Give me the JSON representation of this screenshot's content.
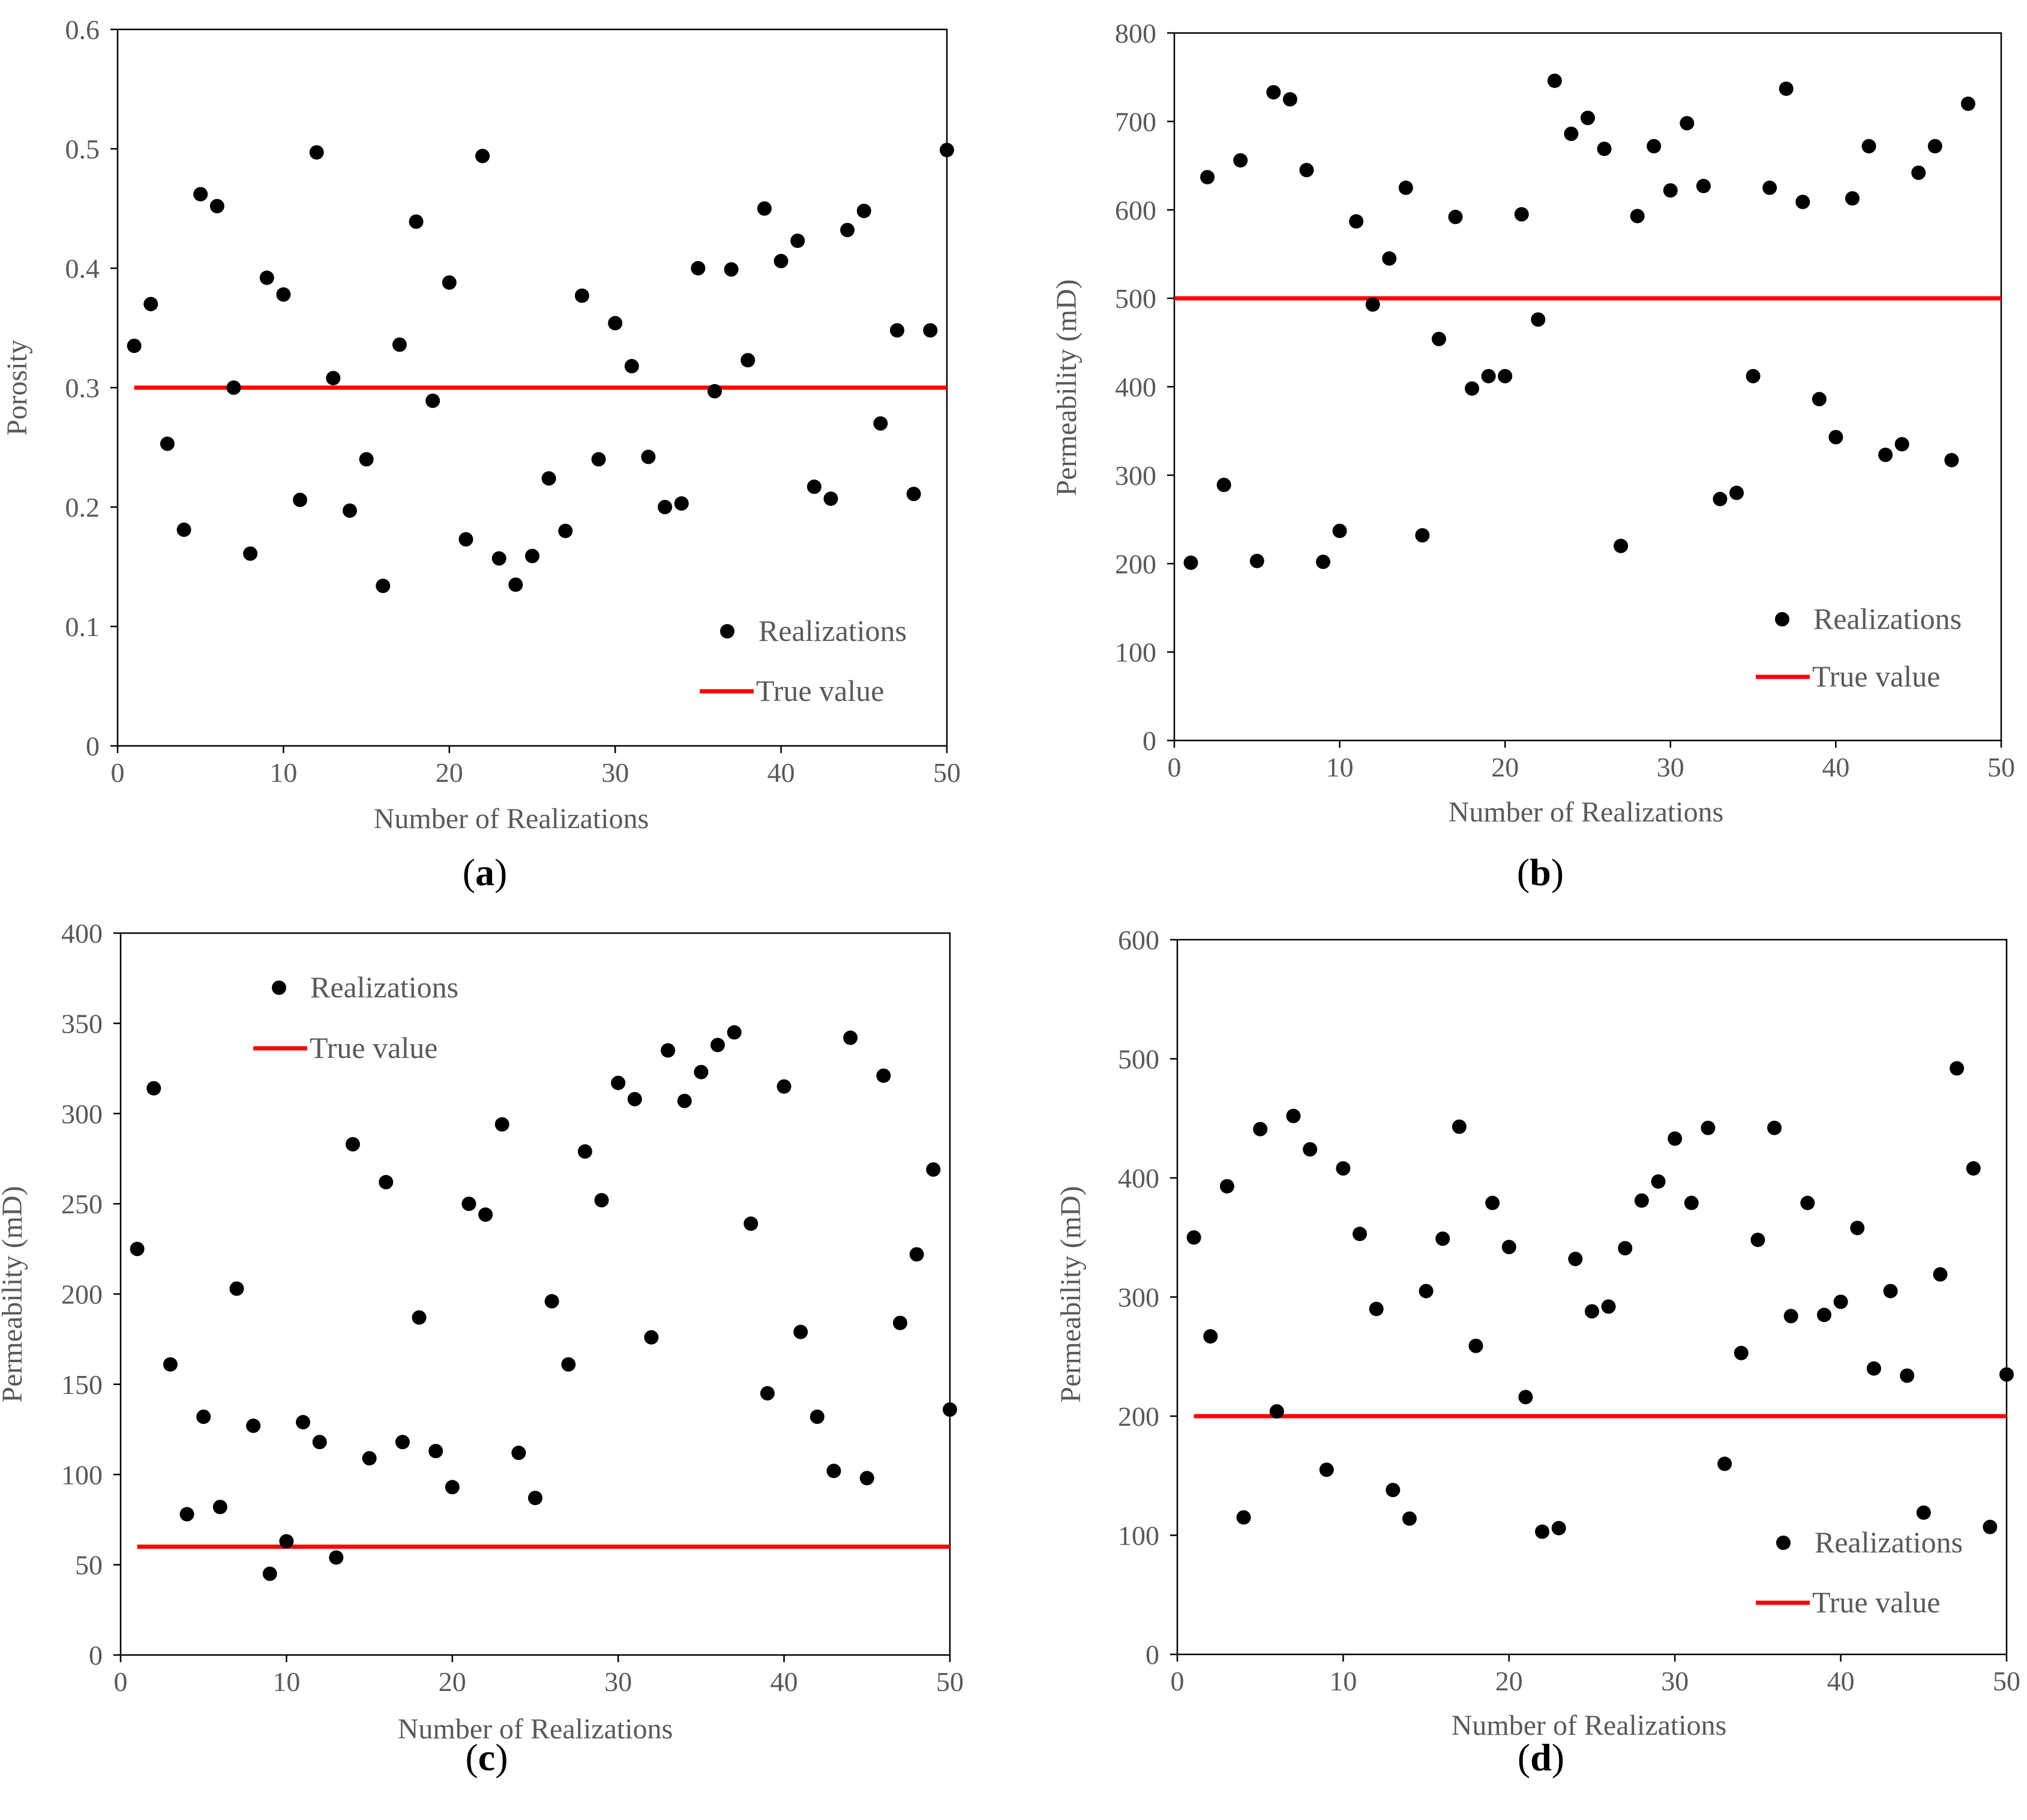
{
  "figure": {
    "colors": {
      "points": "#000000",
      "true_line": "#ff0000",
      "axis": "#000000",
      "tick_text": "#595959"
    },
    "legend": {
      "realizations": "Realizations",
      "true_value": "True value"
    }
  },
  "chart_data": [
    {
      "id": "a",
      "type": "scatter",
      "panel_label": "(a)",
      "label_letter": "a",
      "xlabel": "Number of Realizations",
      "ylabel": "Porosity",
      "xlim": [
        0,
        50
      ],
      "ylim": [
        0,
        0.6
      ],
      "xticks": [
        0,
        10,
        20,
        30,
        40,
        50
      ],
      "xtick_labels": [
        "0",
        "10",
        "20",
        "30",
        "40",
        "50"
      ],
      "yticks": [
        0,
        0.1,
        0.2,
        0.3,
        0.4,
        0.5,
        0.6
      ],
      "ytick_labels": [
        "0",
        "0.1",
        "0.2",
        "0.3",
        "0.4",
        "0.5",
        "0.6"
      ],
      "true_value": 0.3,
      "legend_position": "bottom-right",
      "series": [
        {
          "name": "Realizations",
          "x": [
            1,
            2,
            3,
            4,
            5,
            6,
            7,
            8,
            9,
            10,
            11,
            12,
            13,
            14,
            15,
            16,
            17,
            18,
            19,
            20,
            21,
            22,
            23,
            24,
            25,
            26,
            27,
            28,
            29,
            30,
            31,
            32,
            33,
            34,
            35,
            36,
            37,
            38,
            39,
            40,
            41,
            42,
            43,
            44,
            45,
            46,
            47,
            48,
            49,
            50
          ],
          "y": [
            0.335,
            0.37,
            0.253,
            0.181,
            0.462,
            0.452,
            0.3,
            0.161,
            0.392,
            0.378,
            0.206,
            0.497,
            0.308,
            0.197,
            0.24,
            0.134,
            0.336,
            0.439,
            0.289,
            0.388,
            0.173,
            0.494,
            0.157,
            0.135,
            0.159,
            0.224,
            0.18,
            0.377,
            0.24,
            0.354,
            0.318,
            0.242,
            0.2,
            0.203,
            0.4,
            0.297,
            0.399,
            0.323,
            0.45,
            0.406,
            0.423,
            0.217,
            0.207,
            0.432,
            0.448,
            0.27,
            0.348,
            0.211,
            0.348,
            0.499
          ]
        },
        {
          "name": "True value",
          "x": [
            1,
            50
          ],
          "y": [
            0.3,
            0.3
          ]
        }
      ]
    },
    {
      "id": "b",
      "type": "scatter",
      "panel_label": "(b)",
      "label_letter": "b",
      "xlabel": "Number of Realizations",
      "ylabel": "Permeability (mD)",
      "xlim": [
        0,
        50
      ],
      "ylim": [
        0,
        800
      ],
      "xticks": [
        0,
        10,
        20,
        30,
        40,
        50
      ],
      "xtick_labels": [
        "0",
        "10",
        "20",
        "30",
        "40",
        "50"
      ],
      "yticks": [
        0,
        100,
        200,
        300,
        400,
        500,
        600,
        700,
        800
      ],
      "ytick_labels": [
        "0",
        "100",
        "200",
        "300",
        "400",
        "500",
        "600",
        "700",
        "800"
      ],
      "true_value": 500,
      "legend_position": "bottom-right",
      "series": [
        {
          "name": "Realizations",
          "x": [
            1,
            2,
            3,
            4,
            5,
            6,
            7,
            8,
            9,
            10,
            11,
            12,
            13,
            14,
            15,
            16,
            17,
            18,
            19,
            20,
            21,
            22,
            23,
            24,
            25,
            26,
            27,
            28,
            29,
            30,
            31,
            32,
            33,
            34,
            35,
            36,
            37,
            38,
            39,
            40,
            41,
            42,
            43,
            44,
            45,
            46,
            47,
            48
          ],
          "y": [
            201,
            637,
            289,
            656,
            203,
            733,
            725,
            645,
            202,
            237,
            587,
            493,
            545,
            625,
            232,
            454,
            592,
            398,
            412,
            412,
            595,
            476,
            746,
            686,
            704,
            669,
            220,
            593,
            672,
            622,
            698,
            627,
            273,
            280,
            412,
            625,
            737,
            609,
            386,
            343,
            613,
            672,
            323,
            335,
            642,
            672,
            317,
            720
          ]
        },
        {
          "name": "True value",
          "x": [
            0,
            50
          ],
          "y": [
            500,
            500
          ]
        }
      ]
    },
    {
      "id": "c",
      "type": "scatter",
      "panel_label": "(c)",
      "label_letter": "c",
      "xlabel": "Number of Realizations",
      "ylabel": "Permeability (mD)",
      "xlim": [
        0,
        50
      ],
      "ylim": [
        0,
        400
      ],
      "xticks": [
        0,
        10,
        20,
        30,
        40,
        50
      ],
      "xtick_labels": [
        "0",
        "10",
        "20",
        "30",
        "40",
        "50"
      ],
      "yticks": [
        0,
        50,
        100,
        150,
        200,
        250,
        300,
        350,
        400
      ],
      "ytick_labels": [
        "0",
        "50",
        "100",
        "150",
        "200",
        "250",
        "300",
        "350",
        "400"
      ],
      "true_value": 60,
      "legend_position": "top-left",
      "series": [
        {
          "name": "Realizations",
          "x": [
            1,
            2,
            3,
            4,
            5,
            6,
            7,
            8,
            9,
            10,
            11,
            12,
            13,
            14,
            15,
            16,
            17,
            18,
            19,
            20,
            21,
            22,
            23,
            24,
            25,
            26,
            27,
            28,
            29,
            30,
            31,
            32,
            33,
            34,
            35,
            36,
            37,
            38,
            39,
            40,
            41,
            42,
            43,
            44,
            45,
            46,
            47,
            48,
            49,
            50
          ],
          "y": [
            225,
            314,
            161,
            78,
            132,
            82,
            203,
            127,
            45,
            63,
            129,
            118,
            54,
            283,
            109,
            262,
            118,
            187,
            113,
            93,
            250,
            244,
            294,
            112,
            87,
            196,
            161,
            279,
            252,
            317,
            308,
            176,
            335,
            307,
            323,
            338,
            345,
            239,
            145,
            315,
            179,
            132,
            102,
            342,
            98,
            321,
            184,
            222,
            269,
            136
          ]
        },
        {
          "name": "True value",
          "x": [
            1,
            50
          ],
          "y": [
            60,
            60
          ]
        }
      ]
    },
    {
      "id": "d",
      "type": "scatter",
      "panel_label": "(d)",
      "label_letter": "d",
      "xlabel": "Number of Realizations",
      "ylabel": "Permeability (mD)",
      "xlim": [
        0,
        50
      ],
      "ylim": [
        0,
        600
      ],
      "xticks": [
        0,
        10,
        20,
        30,
        40,
        50
      ],
      "xtick_labels": [
        "0",
        "10",
        "20",
        "30",
        "40",
        "50"
      ],
      "yticks": [
        0,
        100,
        200,
        300,
        400,
        500,
        600
      ],
      "ytick_labels": [
        "0",
        "100",
        "200",
        "300",
        "400",
        "500",
        "600"
      ],
      "true_value": 200,
      "legend_position": "bottom-right",
      "series": [
        {
          "name": "Realizations",
          "x": [
            1,
            2,
            3,
            4,
            5,
            6,
            7,
            8,
            9,
            10,
            11,
            12,
            13,
            14,
            15,
            16,
            17,
            18,
            19,
            20,
            21,
            22,
            23,
            24,
            25,
            26,
            27,
            28,
            29,
            30,
            31,
            32,
            33,
            34,
            35,
            36,
            37,
            38,
            39,
            40,
            41,
            42,
            43,
            44,
            45,
            46,
            47,
            48,
            49,
            50
          ],
          "y": [
            350,
            267,
            393,
            115,
            441,
            204,
            452,
            424,
            155,
            408,
            353,
            290,
            138,
            114,
            305,
            349,
            443,
            259,
            379,
            342,
            216,
            103,
            106,
            332,
            288,
            292,
            341,
            381,
            397,
            433,
            379,
            442,
            160,
            253,
            348,
            442,
            284,
            379,
            285,
            296,
            358,
            240,
            305,
            234,
            119,
            319,
            492,
            408,
            107,
            235
          ]
        },
        {
          "name": "True value",
          "x": [
            1,
            50
          ],
          "y": [
            200,
            200
          ]
        }
      ]
    }
  ]
}
